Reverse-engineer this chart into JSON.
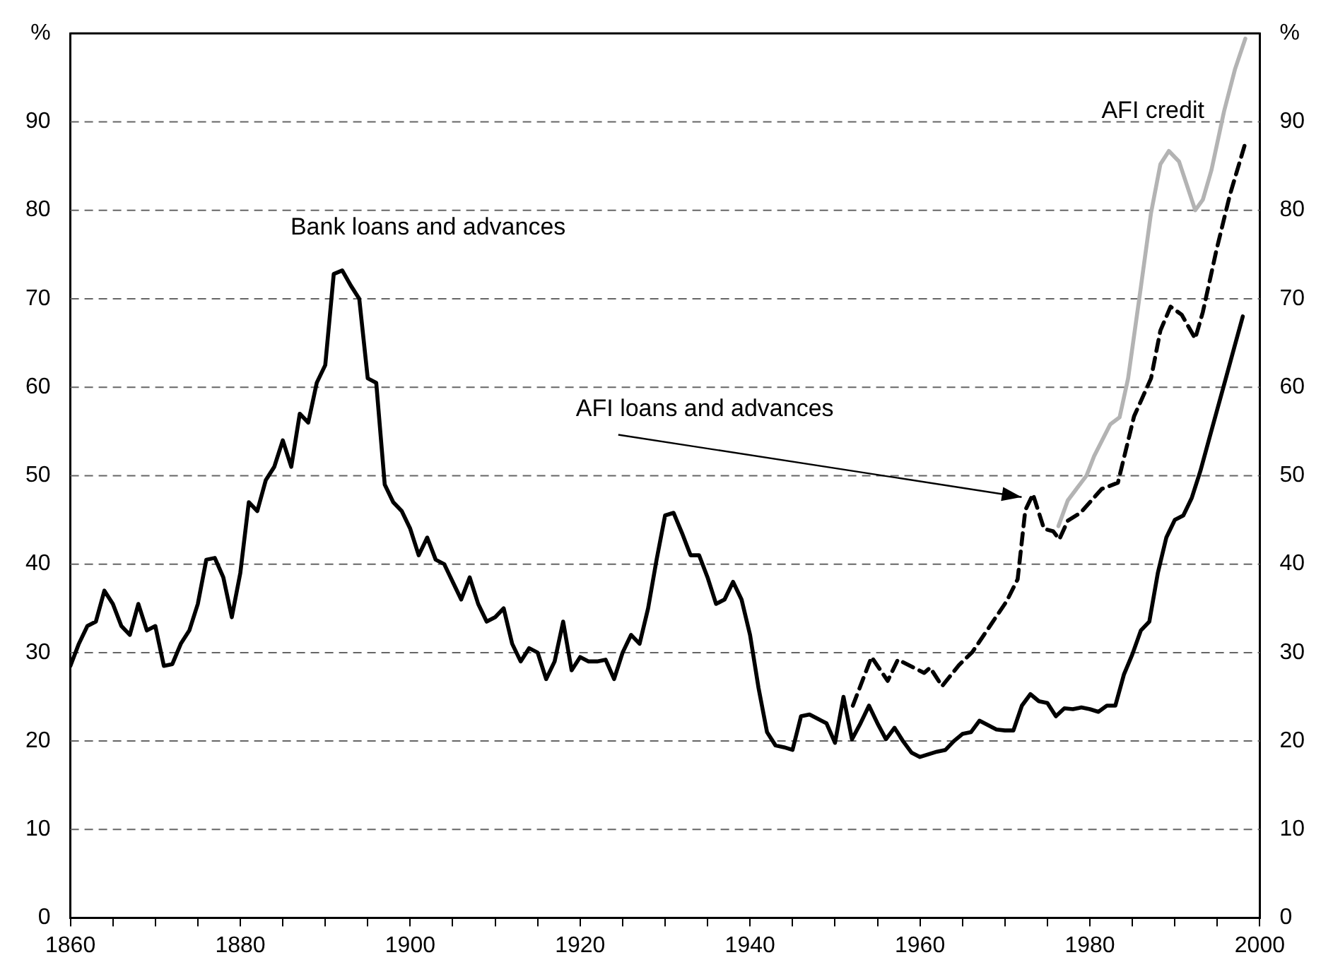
{
  "chart_data": {
    "type": "line",
    "xlim": [
      1860,
      2000
    ],
    "xticks": [
      1860,
      {
        "value": 1865,
        "label": null
      },
      {
        "value": 1870,
        "label": null
      },
      {
        "value": 1875,
        "label": null
      },
      1880,
      {
        "value": 1885,
        "label": null
      },
      {
        "value": 1890,
        "label": null
      },
      {
        "value": 1895,
        "label": null
      },
      1900,
      {
        "value": 1905,
        "label": null
      },
      {
        "value": 1910,
        "label": null
      },
      {
        "value": 1915,
        "label": null
      },
      1920,
      {
        "value": 1925,
        "label": null
      },
      {
        "value": 1930,
        "label": null
      },
      {
        "value": 1935,
        "label": null
      },
      1940,
      {
        "value": 1945,
        "label": null
      },
      {
        "value": 1950,
        "label": null
      },
      {
        "value": 1955,
        "label": null
      },
      1960,
      {
        "value": 1965,
        "label": null
      },
      {
        "value": 1970,
        "label": null
      },
      {
        "value": 1975,
        "label": null
      },
      1980,
      {
        "value": 1985,
        "label": null
      },
      {
        "value": 1990,
        "label": null
      },
      {
        "value": 1995,
        "label": null
      },
      2000
    ],
    "ylim": [
      0,
      100
    ],
    "yticks": [
      0,
      10,
      20,
      30,
      40,
      50,
      60,
      70,
      80,
      90,
      {
        "value": 100,
        "label": "%"
      }
    ],
    "y2lim": [
      0,
      100
    ],
    "y2ticks": [
      0,
      10,
      20,
      30,
      40,
      50,
      60,
      70,
      80,
      90,
      {
        "value": 100,
        "label": "%"
      }
    ],
    "grid": "y",
    "legend": false,
    "marker": "none",
    "series": [
      {
        "name": "Bank loans and advances",
        "color": "#000000",
        "line_style": "solid",
        "x": [
          1860,
          1861,
          1862,
          1863,
          1864,
          1865,
          1866,
          1867,
          1868,
          1869,
          1870,
          1871,
          1872,
          1873,
          1874,
          1875,
          1876,
          1877,
          1878,
          1879,
          1880,
          1881,
          1882,
          1883,
          1884,
          1885,
          1886,
          1887,
          1888,
          1889,
          1890,
          1891,
          1892,
          1893,
          1894,
          1895,
          1896,
          1897,
          1898,
          1899,
          1900,
          1901,
          1902,
          1903,
          1904,
          1905,
          1906,
          1907,
          1908,
          1909,
          1910,
          1911,
          1912,
          1913,
          1914,
          1915,
          1916,
          1917,
          1918,
          1919,
          1920,
          1921,
          1922,
          1923,
          1924,
          1925,
          1926,
          1927,
          1928,
          1929,
          1930,
          1931,
          1932,
          1933,
          1934,
          1935,
          1936,
          1937,
          1938,
          1939,
          1940,
          1941,
          1942,
          1943,
          1944,
          1945,
          1946,
          1947,
          1948,
          1949,
          1950,
          1951,
          1952,
          1953,
          1954,
          1955,
          1956,
          1957,
          1958,
          1959,
          1960,
          1961,
          1962,
          1963,
          1964,
          1965,
          1966,
          1967,
          1968,
          1969,
          1970,
          1971,
          1972,
          1973,
          1974,
          1975,
          1976,
          1977,
          1978,
          1979,
          1980,
          1981,
          1982,
          1983,
          1984,
          1985,
          1986,
          1987,
          1988,
          1989,
          1990,
          1991,
          1992,
          1993,
          1994,
          1995,
          1996,
          1997,
          1998
        ],
        "values": [
          28.5,
          31,
          33,
          33.5,
          37,
          35.5,
          33,
          32,
          35.5,
          32.5,
          33,
          28.5,
          28.7,
          31,
          32.5,
          35.5,
          40.5,
          40.7,
          38.5,
          34,
          39,
          47,
          46,
          49.5,
          51,
          54,
          51,
          57,
          56,
          60.5,
          62.5,
          72.8,
          73.2,
          71.5,
          70,
          61,
          60.5,
          49,
          47,
          46,
          44,
          41,
          43,
          40.5,
          40,
          38,
          36,
          38.5,
          35.5,
          33.5,
          34,
          35,
          31,
          29,
          30.5,
          30,
          27,
          29,
          33.5,
          28,
          29.5,
          29,
          29,
          29.2,
          27,
          30,
          32,
          31,
          35,
          40.5,
          45.5,
          45.8,
          43.5,
          41,
          41,
          38.5,
          35.5,
          36,
          38,
          36,
          32,
          26,
          21,
          19.5,
          19.3,
          19,
          22.8,
          23,
          22.5,
          22,
          19.8,
          25,
          20.2,
          22,
          24,
          22,
          20.2,
          21.5,
          20,
          18.7,
          18.2,
          18.5,
          18.8,
          19,
          20,
          20.8,
          21,
          22.3,
          21.8,
          21.3,
          21.2,
          21.2,
          24,
          25.3,
          24.5,
          24.3,
          22.8,
          23.7,
          23.6,
          23.8,
          23.6,
          23.3,
          24,
          24,
          27.5,
          29.8,
          32.5,
          33.5,
          39,
          43,
          45,
          45.5,
          47.5,
          50.5,
          54,
          57.5,
          61,
          64.5,
          68
        ]
      },
      {
        "name": "AFI loans and advances",
        "color": "#000000",
        "line_style": "dashed",
        "x": [
          1952.1,
          1954.3,
          1956.2,
          1957.4,
          1960.5,
          1961.2,
          1962.6,
          1964.6,
          1966.2,
          1970.2,
          1971.5,
          1972.4,
          1973.3,
          1974.6,
          1975.7,
          1976.4,
          1977.4,
          1978.9,
          1981.4,
          1983.3,
          1985.2,
          1987.2,
          1988.3,
          1989.5,
          1990.8,
          1992.4,
          1993.3,
          1994.9,
          1996.5,
          1998.3
        ],
        "values": [
          24,
          29.5,
          26.8,
          29.2,
          27.7,
          28.3,
          26.2,
          28.6,
          30.1,
          35.8,
          38.3,
          46.1,
          47.9,
          44,
          43.7,
          42.8,
          44.9,
          45.8,
          48.5,
          49.2,
          56.7,
          61,
          66.4,
          69.1,
          68.2,
          65.5,
          68.5,
          75.5,
          81.8,
          87.6
        ]
      },
      {
        "name": "AFI credit",
        "color": "#b3b3b3",
        "line_style": "solid",
        "x": [
          1976.3,
          1977.4,
          1979.6,
          1980.5,
          1982.4,
          1983.5,
          1984.5,
          1985.9,
          1987.2,
          1988.3,
          1989.3,
          1990.5,
          1992.4,
          1993.3,
          1994.3,
          1995.8,
          1997.1,
          1998.3
        ],
        "values": [
          44.3,
          47.2,
          50,
          52.2,
          55.8,
          56.6,
          61,
          70.6,
          79.7,
          85.2,
          86.7,
          85.5,
          80,
          81.2,
          84.5,
          91.2,
          96,
          99.4
        ]
      }
    ]
  }
}
